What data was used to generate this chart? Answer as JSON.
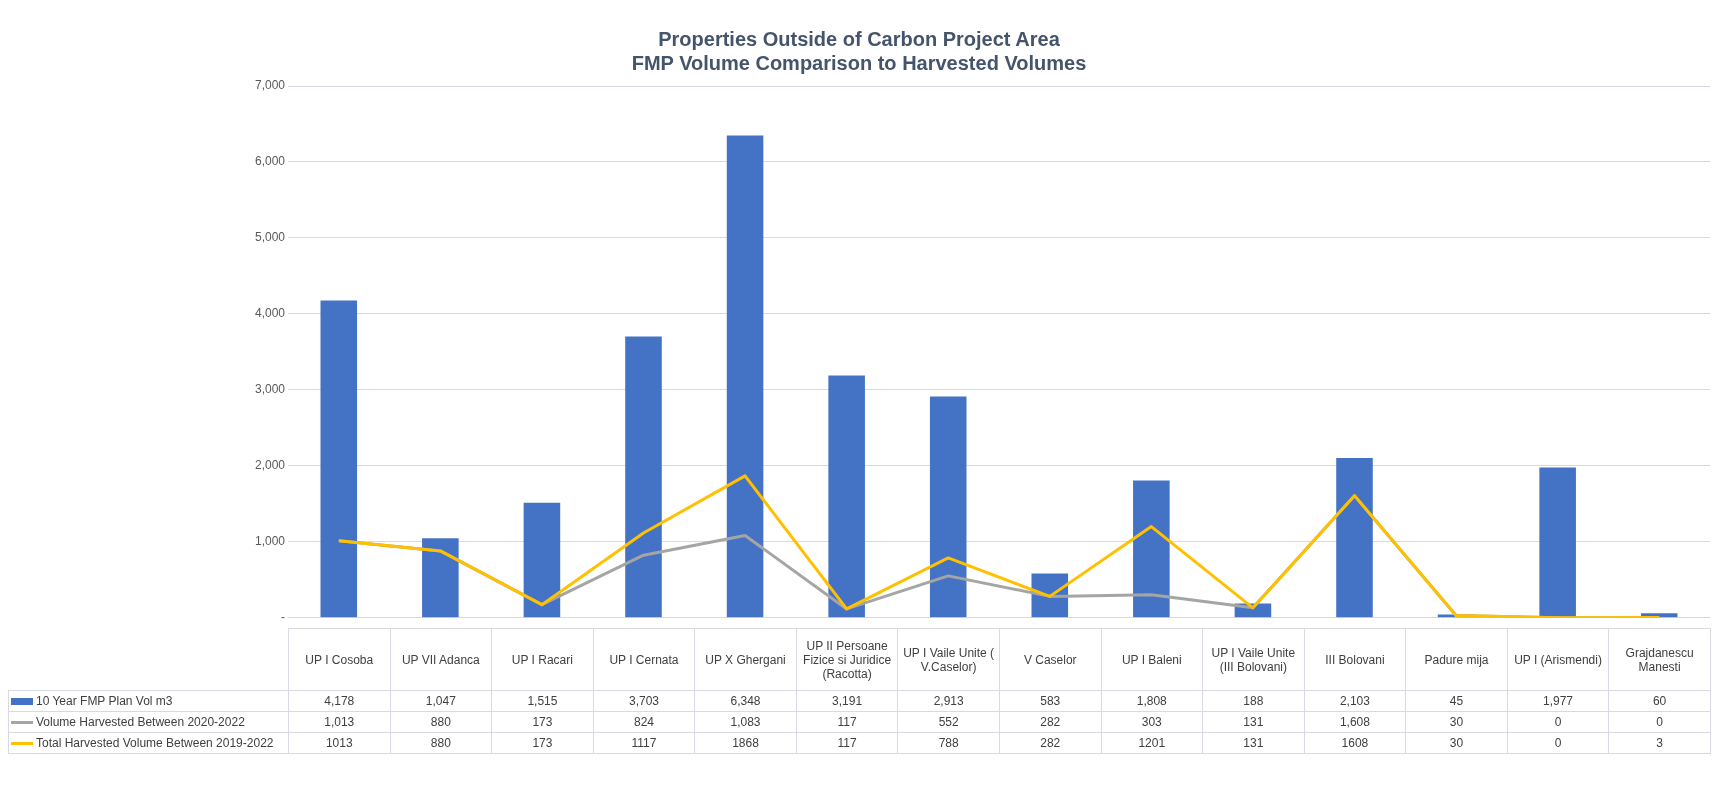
{
  "chart_data": {
    "type": "bar",
    "title": "Properties Outside of Carbon Project Area",
    "subtitle": "FMP Volume Comparison to Harvested Volumes",
    "categories": [
      "UP I Cosoba",
      "UP VII Adanca",
      "UP I Racari",
      "UP I Cernata",
      "UP X Ghergani",
      "UP II Persoane Fizice  si Juridice (Racotta)",
      "UP I Vaile Unite ( V.Caselor)",
      "V Caselor",
      "UP I Baleni",
      "UP I Vaile Unite (III Bolovani)",
      "III Bolovani",
      "Padure mija",
      "UP I (Arismendi)",
      "Grajdanescu Manesti"
    ],
    "series": [
      {
        "name": "10 Year FMP Plan Vol m3",
        "color": "#4472c4",
        "values": [
          4178,
          1047,
          1515,
          3703,
          6348,
          3191,
          2913,
          583,
          1808,
          188,
          2103,
          45,
          1977,
          60
        ],
        "value_labels": [
          "4,178",
          "1,047",
          "1,515",
          "3,703",
          "6,348",
          "3,191",
          "2,913",
          "583",
          "1,808",
          "188",
          "2,103",
          "45",
          "1,977",
          "60"
        ]
      },
      {
        "name": "Volume Harvested Between 2020-2022",
        "type": "line",
        "color": "#a5a5a5",
        "values": [
          1013,
          880,
          173,
          824,
          1083,
          117,
          552,
          282,
          303,
          131,
          1608,
          30,
          0,
          0
        ],
        "value_labels": [
          "1,013",
          "880",
          "173",
          "824",
          "1,083",
          "117",
          "552",
          "282",
          "303",
          "131",
          "1,608",
          "30",
          "0",
          "0"
        ]
      },
      {
        "name": "Total Harvested Volume Between 2019-2022",
        "type": "line",
        "color": "#ffc000",
        "values": [
          1013,
          880,
          173,
          1117,
          1868,
          117,
          788,
          282,
          1201,
          131,
          1608,
          30,
          0,
          3
        ],
        "value_labels": [
          "1013",
          "880",
          "173",
          "1117",
          "1868",
          "117",
          "788",
          "282",
          "1201",
          "131",
          "1608",
          "30",
          "0",
          "3"
        ]
      }
    ],
    "ylim": [
      0,
      7000
    ],
    "yticks": [
      {
        "value": 0,
        "label": "-"
      },
      {
        "value": 1000,
        "label": "1,000"
      },
      {
        "value": 2000,
        "label": "2,000"
      },
      {
        "value": 3000,
        "label": "3,000"
      },
      {
        "value": 4000,
        "label": "4,000"
      },
      {
        "value": 5000,
        "label": "5,000"
      },
      {
        "value": 6000,
        "label": "6,000"
      },
      {
        "value": 7000,
        "label": "7,000"
      }
    ],
    "grid": "y",
    "legend": "bottom",
    "marker": "none",
    "line_style": "solid"
  }
}
